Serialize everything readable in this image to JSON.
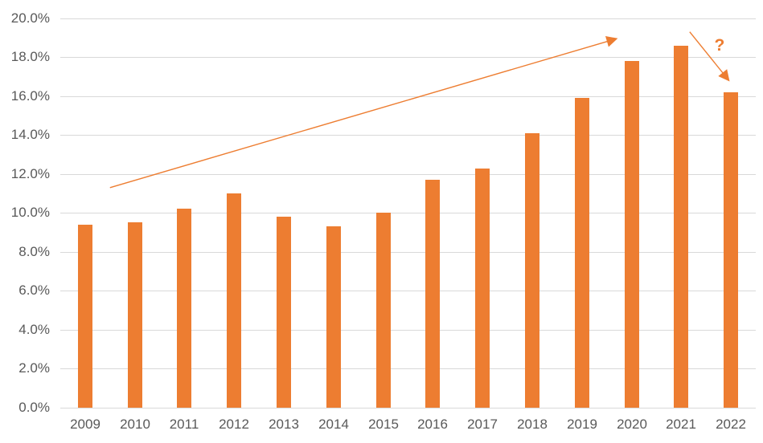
{
  "chart_data": {
    "type": "bar",
    "title": "",
    "categories": [
      "2009",
      "2010",
      "2011",
      "2012",
      "2013",
      "2014",
      "2015",
      "2016",
      "2017",
      "2018",
      "2019",
      "2020",
      "2021",
      "2022"
    ],
    "values": [
      9.4,
      9.5,
      10.2,
      11.0,
      9.8,
      9.3,
      10.0,
      11.7,
      12.3,
      14.1,
      15.9,
      17.8,
      18.6,
      16.2
    ],
    "unit": "%",
    "xlabel": "",
    "ylabel": "",
    "ylim": [
      0,
      20
    ],
    "ytick_step": 2,
    "ytick_labels": [
      "0.0%",
      "2.0%",
      "4.0%",
      "6.0%",
      "8.0%",
      "10.0%",
      "12.0%",
      "14.0%",
      "16.0%",
      "18.0%",
      "20.0%"
    ],
    "grid": true,
    "legend": null,
    "colors": {
      "bar": "#ED7D31",
      "arrow": "#ED7D31",
      "gridline": "#D9D9D9",
      "axis_text": "#595959",
      "background": "#FFFFFF"
    },
    "annotations": {
      "up_arrow": {
        "from": {
          "x": 0.5,
          "y": 11.3
        },
        "to": {
          "x": 10.7,
          "y": 18.95
        }
      },
      "down_arrow": {
        "from": {
          "x": 12.17,
          "y": 19.3
        },
        "to": {
          "x": 12.96,
          "y": 16.8
        }
      },
      "question_mark": {
        "label": "?",
        "x": 12.77,
        "y": 18.6
      }
    }
  }
}
